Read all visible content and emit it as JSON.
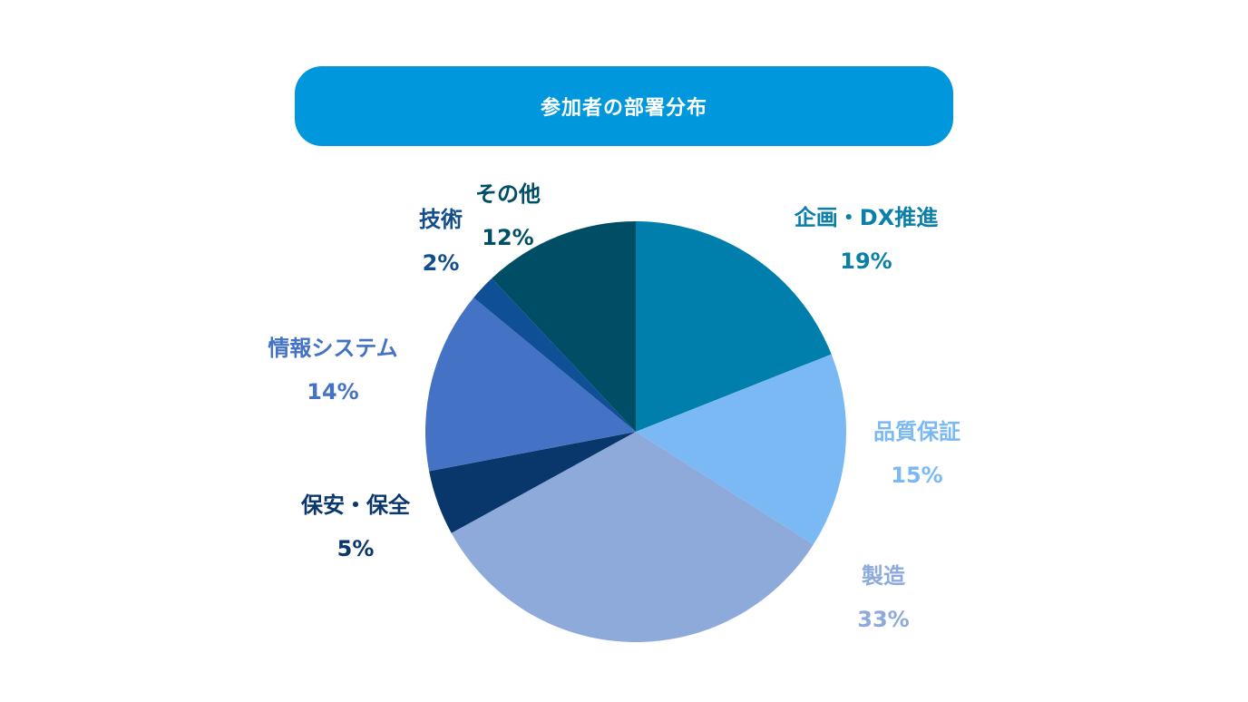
{
  "chart_data": {
    "type": "pie",
    "title": "参加者の部署分布",
    "slices": [
      {
        "label": "企画・DX推進",
        "value": 19,
        "value_label": "19%",
        "color": "#007fac",
        "label_color": "#0b7fa8"
      },
      {
        "label": "品質保証",
        "value": 15,
        "value_label": "15%",
        "color": "#7ab9f4",
        "label_color": "#7ab9f4"
      },
      {
        "label": "製造",
        "value": 33,
        "value_label": "33%",
        "color": "#8eaadb",
        "label_color": "#8eaadb"
      },
      {
        "label": "保安・保全",
        "value": 5,
        "value_label": "5%",
        "color": "#0a376b",
        "label_color": "#0a376b"
      },
      {
        "label": "情報システム",
        "value": 14,
        "value_label": "14%",
        "color": "#4472c4",
        "label_color": "#4472c4"
      },
      {
        "label": "技術",
        "value": 2,
        "value_label": "2%",
        "color": "#0e4f96",
        "label_color": "#124e8c"
      },
      {
        "label": "その他",
        "value": 12,
        "value_label": "12%",
        "color": "#004d66",
        "label_color": "#004d66"
      }
    ],
    "start_angle": "12 o'clock",
    "direction": "clockwise",
    "legend": "none",
    "title_color": "#0097dc"
  }
}
